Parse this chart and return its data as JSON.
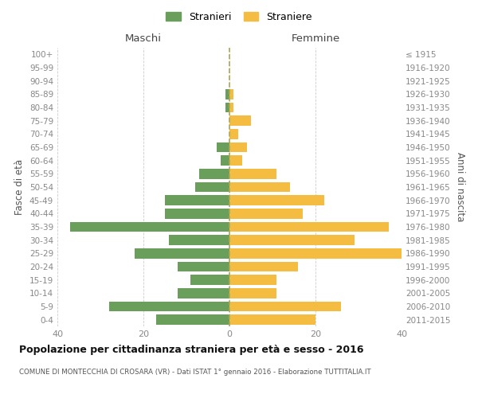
{
  "age_groups": [
    "0-4",
    "5-9",
    "10-14",
    "15-19",
    "20-24",
    "25-29",
    "30-34",
    "35-39",
    "40-44",
    "45-49",
    "50-54",
    "55-59",
    "60-64",
    "65-69",
    "70-74",
    "75-79",
    "80-84",
    "85-89",
    "90-94",
    "95-99",
    "100+"
  ],
  "birth_years": [
    "2011-2015",
    "2006-2010",
    "2001-2005",
    "1996-2000",
    "1991-1995",
    "1986-1990",
    "1981-1985",
    "1976-1980",
    "1971-1975",
    "1966-1970",
    "1961-1965",
    "1956-1960",
    "1951-1955",
    "1946-1950",
    "1941-1945",
    "1936-1940",
    "1931-1935",
    "1926-1930",
    "1921-1925",
    "1916-1920",
    "≤ 1915"
  ],
  "maschi": [
    17,
    28,
    12,
    9,
    12,
    22,
    14,
    37,
    15,
    15,
    8,
    7,
    2,
    3,
    0,
    0,
    1,
    1,
    0,
    0,
    0
  ],
  "femmine": [
    20,
    26,
    11,
    11,
    16,
    40,
    29,
    37,
    17,
    22,
    14,
    11,
    3,
    4,
    2,
    5,
    1,
    1,
    0,
    0,
    0
  ],
  "color_maschi": "#6a9e5b",
  "color_femmine": "#f5bc42",
  "title": "Popolazione per cittadinanza straniera per età e sesso - 2016",
  "subtitle": "COMUNE DI MONTECCHIA DI CROSARA (VR) - Dati ISTAT 1° gennaio 2016 - Elaborazione TUTTITALIA.IT",
  "xlabel_left": "Maschi",
  "xlabel_right": "Femmine",
  "ylabel_left": "Fasce di età",
  "ylabel_right": "Anni di nascita",
  "legend_maschi": "Stranieri",
  "legend_femmine": "Straniere",
  "xlim": 40,
  "background_color": "#ffffff",
  "grid_color": "#cccccc",
  "axis_label_color": "#555555",
  "tick_label_color": "#888888",
  "dashed_line_color": "#aaa855"
}
